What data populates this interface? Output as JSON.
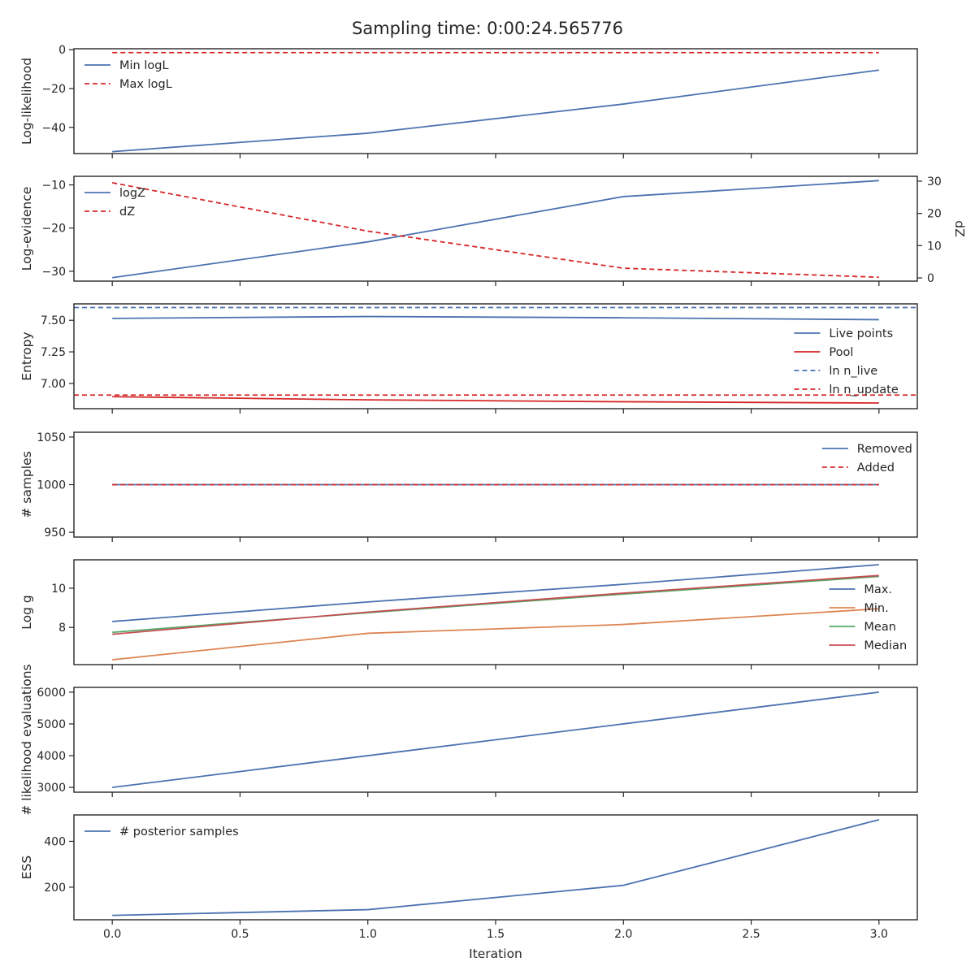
{
  "colors": {
    "blue": "#4c72b0",
    "red": "#d62728",
    "orange": "#dd8452",
    "green": "#55a868",
    "muted_red": "#c44e52",
    "axis": "#262626"
  },
  "chart_data": {
    "type": "line",
    "title": "Sampling time: 0:00:24.565776",
    "xlabel": "Iteration",
    "x": [
      0,
      1,
      2,
      3
    ],
    "xlim": [
      -0.15,
      3.15
    ],
    "xticks": [
      0.0,
      0.5,
      1.0,
      1.5,
      2.0,
      2.5,
      3.0
    ],
    "xtick_labels": [
      "0.0",
      "0.5",
      "1.0",
      "1.5",
      "2.0",
      "2.5",
      "3.0"
    ],
    "grid": false,
    "panels": [
      {
        "id": "loglikelihood",
        "ylabel": "Log-likelihood",
        "ylim": [
          -53.5,
          0.5
        ],
        "yticks": [
          0,
          -20,
          -40
        ],
        "ytick_labels": [
          "0",
          "−20",
          "−40"
        ],
        "legend_position": "upper left",
        "series": [
          {
            "name": "Min logL",
            "color": "blue",
            "dash": "solid",
            "values": [
              -52.5,
              -43.0,
              -28.0,
              -10.5
            ]
          },
          {
            "name": "Max logL",
            "color": "red",
            "dash": "dashed",
            "values": [
              -1.5,
              -1.5,
              -1.5,
              -1.5
            ]
          }
        ]
      },
      {
        "id": "logevidence",
        "ylabel": "Log-evidence",
        "ylim": [
          -32.3,
          -8.0
        ],
        "yticks": [
          -10,
          -20,
          -30
        ],
        "ytick_labels": [
          "−10",
          "−20",
          "−30"
        ],
        "right_ylabel": "dZ",
        "right_ylim": [
          -1.0,
          31.5
        ],
        "right_yticks": [
          0,
          10,
          20,
          30
        ],
        "right_ytick_labels": [
          "0",
          "10",
          "20",
          "30"
        ],
        "legend_position": "upper left",
        "series": [
          {
            "name": "logZ",
            "color": "blue",
            "dash": "solid",
            "axis": "left",
            "values": [
              -31.5,
              -23.2,
              -12.7,
              -9.0
            ]
          },
          {
            "name": "dZ",
            "color": "red",
            "dash": "dashed",
            "axis": "right",
            "values": [
              29.5,
              14.5,
              3.0,
              0.2
            ]
          }
        ]
      },
      {
        "id": "entropy",
        "ylabel": "Entropy",
        "ylim": [
          6.8,
          7.63
        ],
        "yticks": [
          7.5,
          7.25,
          7.0
        ],
        "ytick_labels": [
          "7.50",
          "7.25",
          "7.00"
        ],
        "legend_position": "center right",
        "series": [
          {
            "name": "Live points",
            "color": "blue",
            "dash": "solid",
            "values": [
              7.515,
              7.53,
              7.52,
              7.505
            ]
          },
          {
            "name": "Pool",
            "color": "red",
            "dash": "solid",
            "values": [
              6.895,
              6.87,
              6.855,
              6.845
            ]
          },
          {
            "name": "ln n_live",
            "color": "blue",
            "dash": "dashed",
            "hline": 7.6009
          },
          {
            "name": "ln n_update",
            "color": "red",
            "dash": "dashed",
            "hline": 6.9078
          }
        ]
      },
      {
        "id": "samples",
        "ylabel": "# samples",
        "ylim": [
          945,
          1055
        ],
        "yticks": [
          1050,
          1000,
          950
        ],
        "ytick_labels": [
          "1050",
          "1000",
          "950"
        ],
        "legend_position": "upper right",
        "series": [
          {
            "name": "Removed",
            "color": "blue",
            "dash": "solid",
            "values": [
              1000,
              1000,
              1000,
              1000
            ]
          },
          {
            "name": "Added",
            "color": "red",
            "dash": "dashed",
            "values": [
              1000,
              1000,
              1000,
              1000
            ]
          }
        ]
      },
      {
        "id": "logg",
        "ylabel": "Log g",
        "ylim": [
          6.1,
          11.45
        ],
        "yticks": [
          10,
          8
        ],
        "ytick_labels": [
          "10",
          "8"
        ],
        "legend_position": "center right",
        "series": [
          {
            "name": "Max.",
            "color": "blue",
            "dash": "solid",
            "values": [
              8.3,
              9.3,
              10.2,
              11.2
            ]
          },
          {
            "name": "Min.",
            "color": "orange",
            "dash": "solid",
            "values": [
              6.35,
              7.7,
              8.15,
              8.95
            ]
          },
          {
            "name": "Mean",
            "color": "green",
            "dash": "solid",
            "values": [
              7.75,
              8.75,
              9.7,
              10.6
            ]
          },
          {
            "name": "Median",
            "color": "muted_red",
            "dash": "solid",
            "values": [
              7.65,
              8.78,
              9.75,
              10.65
            ]
          }
        ]
      },
      {
        "id": "likelihood_evaluations",
        "ylabel": "# likelihood evaluations",
        "ylim": [
          2850,
          6150
        ],
        "yticks": [
          6000,
          5000,
          4000,
          3000
        ],
        "ytick_labels": [
          "6000",
          "5000",
          "4000",
          "3000"
        ],
        "legend_position": "none",
        "series": [
          {
            "name": "",
            "color": "blue",
            "dash": "solid",
            "values": [
              3000,
              4000,
              5000,
              6000
            ]
          }
        ]
      },
      {
        "id": "ess",
        "ylabel": "ESS",
        "ylim": [
          58,
          515
        ],
        "yticks": [
          400,
          200
        ],
        "ytick_labels": [
          "400",
          "200"
        ],
        "legend_position": "upper left",
        "series": [
          {
            "name": "# posterior samples",
            "color": "blue",
            "dash": "solid",
            "values": [
              77,
              102,
              208,
              494
            ]
          }
        ]
      }
    ]
  }
}
